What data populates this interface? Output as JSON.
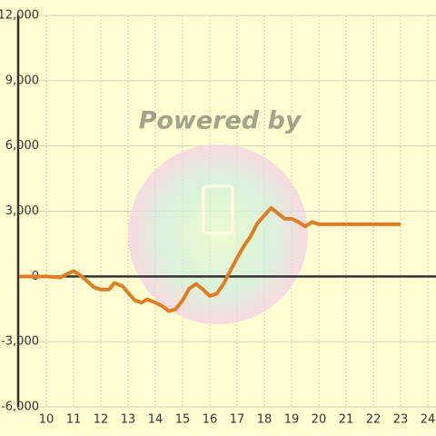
{
  "chart_data": {
    "type": "line",
    "watermark": "Powered by",
    "x": [
      9,
      10,
      10.5,
      11,
      11.3,
      11.75,
      12,
      12.3,
      12.5,
      12.8,
      13,
      13.25,
      13.5,
      13.7,
      14,
      14.3,
      14.5,
      14.75,
      15,
      15.25,
      15.5,
      15.75,
      16,
      16.25,
      16.5,
      16.75,
      17,
      17.25,
      17.5,
      17.75,
      18,
      18.25,
      18.5,
      18.75,
      19,
      19.25,
      19.5,
      19.75,
      20,
      21,
      22,
      23
    ],
    "series": [
      {
        "color": "#e07d22",
        "values": [
          0,
          0,
          -50,
          250,
          0,
          -500,
          -600,
          -600,
          -300,
          -450,
          -750,
          -1100,
          -1200,
          -1050,
          -1200,
          -1400,
          -1600,
          -1500,
          -1100,
          -550,
          -350,
          -600,
          -900,
          -800,
          -350,
          250,
          850,
          1400,
          1850,
          2450,
          2800,
          3150,
          2900,
          2650,
          2650,
          2500,
          2300,
          2500,
          2400,
          2400,
          2400,
          2400
        ]
      }
    ],
    "xlim": [
      9,
      24.3
    ],
    "xticks": [
      10,
      11,
      12,
      13,
      14,
      15,
      16,
      17,
      18,
      19,
      20,
      21,
      22,
      23,
      24
    ],
    "ylim": [
      -6000,
      12000
    ],
    "yticks": [
      {
        "value": -6000,
        "label": "-6,000"
      },
      {
        "value": -3000,
        "label": "-3,000"
      },
      0,
      {
        "value": 3000,
        "label": "3,000"
      },
      {
        "value": 6000,
        "label": "6,000"
      },
      {
        "value": 9000,
        "label": "9,000"
      },
      {
        "value": 12000,
        "label": "12,000"
      }
    ],
    "grid": true
  }
}
